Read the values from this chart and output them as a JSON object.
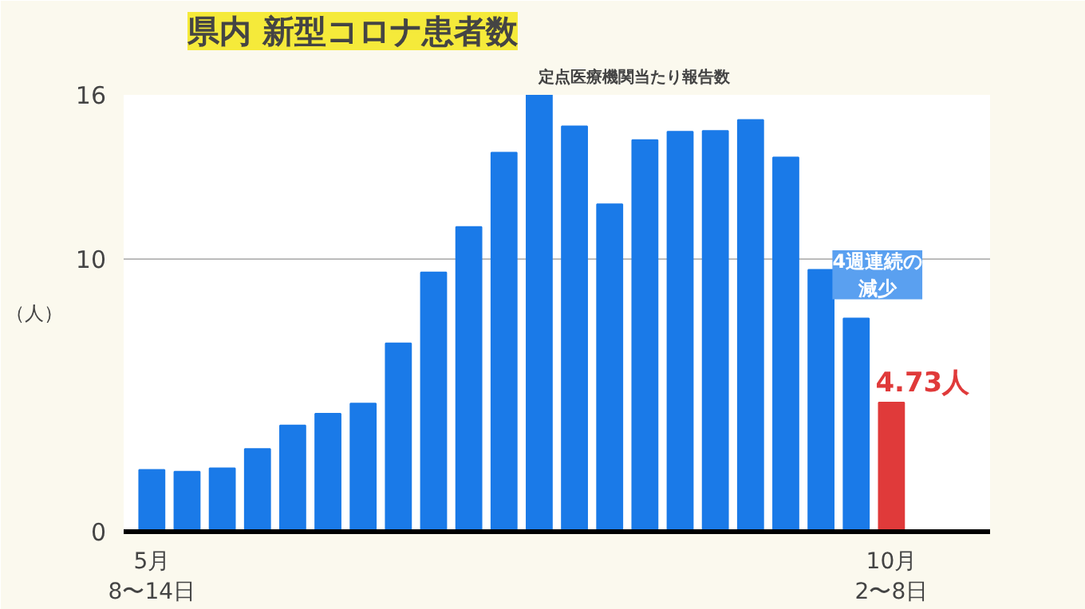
{
  "chart_data": {
    "type": "bar",
    "title": "県内 新型コロナ患者数",
    "subtitle": "定点医療機関当たり報告数",
    "ylabel": "（人）",
    "categories": [
      "5月\n8〜14日",
      null,
      null,
      null,
      null,
      null,
      null,
      null,
      null,
      null,
      null,
      null,
      null,
      null,
      null,
      null,
      null,
      null,
      null,
      null,
      null,
      "10月\n2〜8日"
    ],
    "values": [
      2.26,
      2.2,
      2.32,
      3.03,
      3.89,
      4.32,
      4.69,
      6.9,
      9.5,
      11.16,
      13.88,
      16.0,
      14.85,
      11.99,
      14.34,
      14.65,
      14.68,
      15.08,
      13.71,
      9.59,
      7.81,
      4.73
    ],
    "colors": [
      "#1a7ae8",
      "#1a7ae8",
      "#1a7ae8",
      "#1a7ae8",
      "#1a7ae8",
      "#1a7ae8",
      "#1a7ae8",
      "#1a7ae8",
      "#1a7ae8",
      "#1a7ae8",
      "#1a7ae8",
      "#1a7ae8",
      "#1a7ae8",
      "#1a7ae8",
      "#1a7ae8",
      "#1a7ae8",
      "#1a7ae8",
      "#1a7ae8",
      "#1a7ae8",
      "#1a7ae8",
      "#1a7ae8",
      "#e03a3a"
    ],
    "value_labels": [
      null,
      null,
      null,
      null,
      null,
      null,
      null,
      null,
      null,
      null,
      null,
      null,
      null,
      null,
      null,
      null,
      null,
      null,
      null,
      null,
      null,
      "4.73人"
    ],
    "annotations": [
      "4週連続の減少"
    ],
    "ylim": [
      0,
      16
    ],
    "yticks": [
      0,
      10,
      16
    ],
    "grid": "y"
  }
}
